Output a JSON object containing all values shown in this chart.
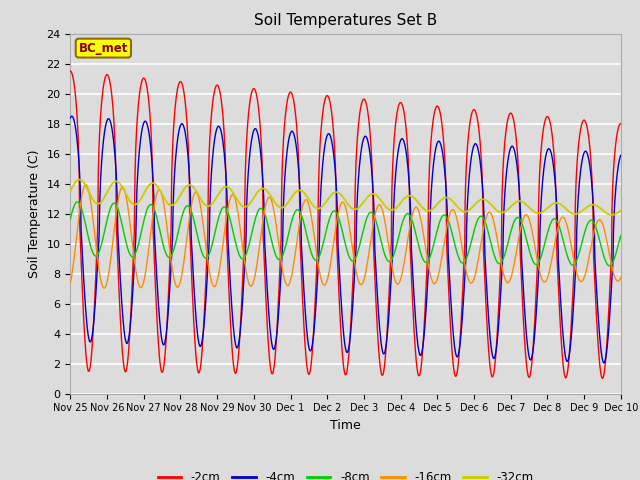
{
  "title": "Soil Temperatures Set B",
  "xlabel": "Time",
  "ylabel": "Soil Temperature (C)",
  "ylim": [
    0,
    24
  ],
  "annotation_text": "BC_met",
  "annotation_bg": "#FFFF00",
  "annotation_border": "#8B6914",
  "legend_labels": [
    "-2cm",
    "-4cm",
    "-8cm",
    "-16cm",
    "-32cm"
  ],
  "line_colors": [
    "#FF0000",
    "#0000CC",
    "#00CC00",
    "#FF8C00",
    "#CCCC00"
  ],
  "background_color": "#DCDCDC",
  "grid_color": "#FFFFFF",
  "xtick_labels": [
    "Nov 25",
    "Nov 26",
    "Nov 27",
    "Nov 28",
    "Nov 29",
    "Nov 30",
    "Dec 1",
    "Dec 2",
    "Dec 3",
    "Dec 4",
    "Dec 5",
    "Dec 6",
    "Dec 7",
    "Dec 8",
    "Dec 9",
    "Dec 10"
  ],
  "xtick_positions": [
    0,
    1,
    2,
    3,
    4,
    5,
    6,
    7,
    8,
    9,
    10,
    11,
    12,
    13,
    14,
    15
  ],
  "n_points": 1500
}
